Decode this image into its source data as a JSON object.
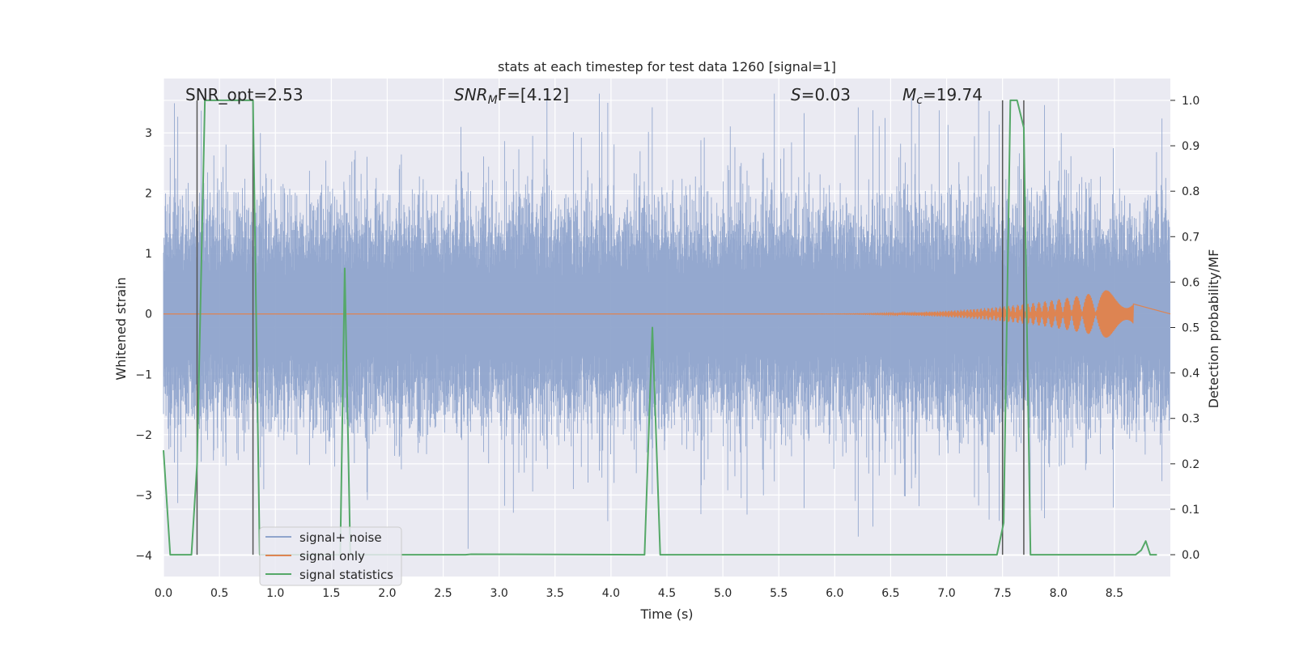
{
  "chart_data": {
    "type": "line",
    "title": "stats at each timestep for test data 1260 [signal=1]",
    "xlabel": "Time (s)",
    "ylabel": "Whitened strain",
    "y2label": "Detection probability/MF",
    "xlim": [
      0,
      9.0
    ],
    "ylim": [
      -4.35,
      3.9
    ],
    "y2lim": [
      -0.048,
      1.048
    ],
    "x_ticks": [
      "0.0",
      "0.5",
      "1.0",
      "1.5",
      "2.0",
      "2.5",
      "3.0",
      "3.5",
      "4.0",
      "4.5",
      "5.0",
      "5.5",
      "6.0",
      "6.5",
      "7.0",
      "7.5",
      "8.0",
      "8.5"
    ],
    "y_ticks": [
      "3",
      "2",
      "1",
      "0",
      "−1",
      "−2",
      "−3",
      "−4"
    ],
    "y2_ticks": [
      "1.0",
      "0.9",
      "0.8",
      "0.7",
      "0.6",
      "0.5",
      "0.4",
      "0.3",
      "0.2",
      "0.1",
      "0.0"
    ],
    "grid": true,
    "legend_position": "lower-left",
    "annotations": {
      "snr_opt": "SNR_opt=2.53",
      "snr_mf_label": "SNR",
      "snr_mf_sub": "M",
      "snr_mf_rest": "F=[4.12]",
      "s_label": "S",
      "s_rest": "=0.03",
      "mc_label": "M",
      "mc_sub": "c",
      "mc_rest": "=19.74"
    },
    "vertical_markers": [
      0.3,
      0.8,
      7.5,
      7.69
    ],
    "series": [
      {
        "name": "signal+ noise",
        "color": "#8fa4cc",
        "axis": "left",
        "description_values": "whitened noise, amplitude about ±2 with peaks to about 3.6 and -4"
      },
      {
        "name": "signal only",
        "color": "#dd8452",
        "axis": "left",
        "envelope": {
          "start_t": 5.5,
          "end_t": 8.67,
          "peak_amplitude": 0.5
        }
      },
      {
        "name": "signal statistics",
        "color": "#55a868",
        "axis": "right",
        "x": [
          0.0,
          0.06,
          0.25,
          0.3,
          0.37,
          0.8,
          0.86,
          1.58,
          1.62,
          1.67,
          2.7,
          2.75,
          4.3,
          4.37,
          4.44,
          7.45,
          7.51,
          7.57,
          7.63,
          7.69,
          7.75,
          8.69,
          8.74,
          8.78,
          8.82,
          8.88
        ],
        "values": [
          0.23,
          0.0,
          0.0,
          0.2,
          1.0,
          1.0,
          0.0,
          0.0,
          0.63,
          0.0,
          0.0,
          0.001,
          0.0,
          0.5,
          0.0,
          0.0,
          0.07,
          1.0,
          1.0,
          0.94,
          0.0,
          0.0,
          0.01,
          0.03,
          0.0,
          0.0
        ]
      }
    ]
  }
}
